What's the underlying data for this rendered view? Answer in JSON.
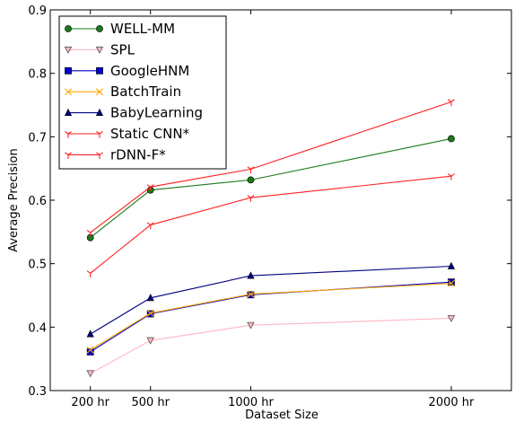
{
  "chart_data": {
    "type": "line",
    "title": "",
    "xlabel": "Dataset Size",
    "ylabel": "Average Precision",
    "categories": [
      "200 hr",
      "500 hr",
      "1000 hr",
      "2000 hr"
    ],
    "x": [
      200,
      500,
      1000,
      2000
    ],
    "xlim": [
      0,
      2300
    ],
    "ylim": [
      0.3,
      0.9
    ],
    "yticks": [
      "0.3",
      "0.4",
      "0.5",
      "0.6",
      "0.7",
      "0.8",
      "0.9"
    ],
    "grid": false,
    "legend_position": "top-left",
    "series": [
      {
        "name": "WELL-MM",
        "values": [
          0.541,
          0.616,
          0.632,
          0.697
        ],
        "color": "#1a7a1a",
        "marker": "circle"
      },
      {
        "name": "SPL",
        "values": [
          0.327,
          0.379,
          0.403,
          0.414
        ],
        "color": "#ffb6c1",
        "marker": "triangle-down"
      },
      {
        "name": "GoogleHNM",
        "values": [
          0.361,
          0.421,
          0.451,
          0.471
        ],
        "color": "#0000cc",
        "marker": "square"
      },
      {
        "name": "BatchTrain",
        "values": [
          0.364,
          0.422,
          0.452,
          0.469
        ],
        "color": "#ffa500",
        "marker": "x"
      },
      {
        "name": "BabyLearning",
        "values": [
          0.389,
          0.446,
          0.481,
          0.496
        ],
        "color": "#000080",
        "marker": "triangle-up"
      },
      {
        "name": "Static CNN*",
        "values": [
          0.549,
          0.621,
          0.649,
          0.755
        ],
        "color": "#ff2020",
        "marker": "tri"
      },
      {
        "name": "rDNN-F*",
        "values": [
          0.485,
          0.561,
          0.604,
          0.638
        ],
        "color": "#ff2020",
        "marker": "tri"
      }
    ]
  }
}
